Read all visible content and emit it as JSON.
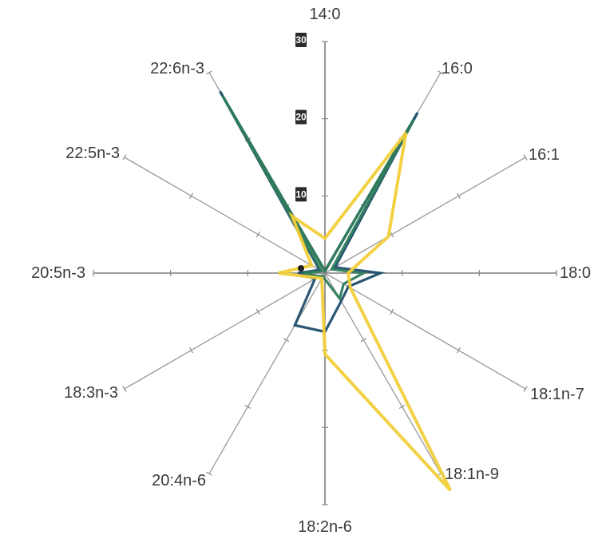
{
  "chart_data": {
    "type": "radar",
    "title": "",
    "axes": [
      "14:0",
      "16:0",
      "16:1",
      "18:0",
      "18:1n-7",
      "18:1n-9",
      "18:2n-6",
      "20:4n-6",
      "18:3n-3",
      "20:5n-3",
      "22:5n-3",
      "22:6n-3"
    ],
    "r_ticks": [
      "10",
      "20",
      "30"
    ],
    "r_max": 30,
    "tick_values": [
      10,
      20,
      30
    ],
    "series": [
      {
        "color": "#1f4e6e",
        "values": [
          0.3,
          24,
          1.5,
          7.2,
          3.5,
          4.2,
          7.6,
          7.8,
          1.5,
          3.5,
          0.8,
          27.2
        ]
      },
      {
        "color": "#2e7d5b",
        "values": [
          0.3,
          23,
          1.0,
          5.0,
          2.8,
          3.8,
          0.8,
          0.5,
          0.8,
          2.8,
          0.5,
          26.5
        ]
      },
      {
        "color": "#f2cf3a",
        "values": [
          4.5,
          21,
          9.5,
          3.0,
          3.8,
          32.5,
          10.5,
          0.8,
          1.2,
          6.0,
          2.0,
          8.5
        ]
      }
    ]
  }
}
